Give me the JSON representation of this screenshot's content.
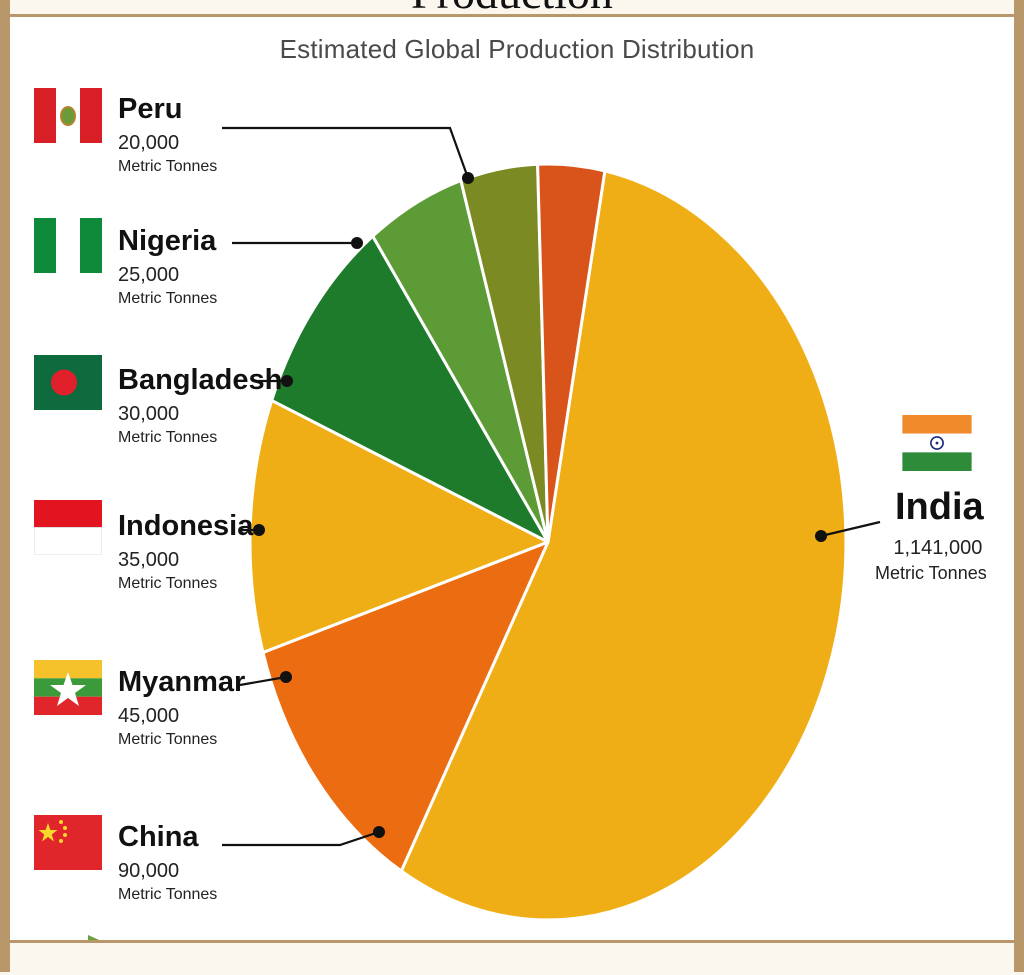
{
  "header": {
    "title_fragment": "Production"
  },
  "chart_data": {
    "type": "pie",
    "title": "",
    "subtitle": "Estimated Global Production Distribution",
    "unit": "Metric Tonnes",
    "slices": [
      {
        "label": "India",
        "value": 1141000,
        "value_text": "1,141,000",
        "color": "#f0ae16"
      },
      {
        "label": "China",
        "value": 90000,
        "value_text": "90,000",
        "color": "#ec6c11"
      },
      {
        "label": "Myanmar",
        "value": 45000,
        "value_text": "45,000",
        "color": "#f0ae16"
      },
      {
        "label": "Indonesia",
        "value": 35000,
        "value_text": "35,000",
        "color": "#1f7b2c"
      },
      {
        "label": "Bangladesh",
        "value": 30000,
        "value_text": "30,000",
        "color": "#5c9b35"
      },
      {
        "label": "Nigeria",
        "value": 25000,
        "value_text": "25,000",
        "color": "#7b8a22"
      },
      {
        "label": "Peru",
        "value": 20000,
        "value_text": "20,000",
        "color": "#d9541a"
      }
    ]
  },
  "flags": {
    "Peru": "peru-flag-icon",
    "Nigeria": "nigeria-flag-icon",
    "Bangladesh": "bangladesh-flag-icon",
    "Indonesia": "indonesia-flag-icon",
    "Myanmar": "myanmar-flag-icon",
    "China": "china-flag-icon",
    "India": "india-flag-icon"
  }
}
